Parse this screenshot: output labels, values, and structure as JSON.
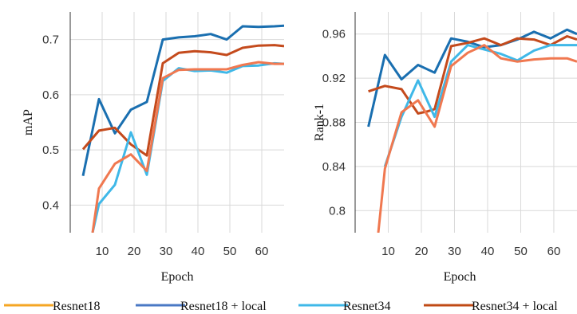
{
  "legend": {
    "entries": [
      {
        "label": "Resnet18",
        "color": "#f5a623"
      },
      {
        "label": "Resnet18 + local",
        "color": "#4a78c4"
      },
      {
        "label": "Resnet34",
        "color": "#3fb8e8"
      },
      {
        "label": "Resnet34 + local",
        "color": "#c04a14"
      }
    ]
  },
  "chart_data": [
    {
      "type": "line",
      "xlabel": "Epoch",
      "ylabel": "mAP",
      "xlim": [
        0,
        67
      ],
      "ylim": [
        0.35,
        0.75
      ],
      "xticks": [
        10,
        20,
        30,
        40,
        50,
        60
      ],
      "yticks": [
        0.4,
        0.5,
        0.6,
        0.7
      ],
      "ytick_labels": [
        "0.4",
        "0.5",
        "0.6",
        "0.7"
      ],
      "grid": true,
      "series": [
        {
          "name": "Resnet18 + local",
          "color": "#1a6fb0",
          "x": [
            4,
            9,
            14,
            19,
            24,
            29,
            34,
            39,
            44,
            49,
            54,
            59,
            64,
            67
          ],
          "y": [
            0.453,
            0.592,
            0.53,
            0.573,
            0.587,
            0.7,
            0.704,
            0.706,
            0.71,
            0.7,
            0.724,
            0.723,
            0.724,
            0.725
          ]
        },
        {
          "name": "Resnet34 + local",
          "color": "#c44a1c",
          "x": [
            4,
            9,
            14,
            19,
            24,
            29,
            34,
            39,
            44,
            49,
            54,
            59,
            64,
            67
          ],
          "y": [
            0.501,
            0.535,
            0.54,
            0.51,
            0.49,
            0.657,
            0.676,
            0.679,
            0.677,
            0.672,
            0.685,
            0.689,
            0.69,
            0.688
          ]
        },
        {
          "name": "Resnet34",
          "color": "#3fb8e8",
          "x": [
            7,
            9,
            14,
            19,
            24,
            29,
            34,
            39,
            44,
            49,
            54,
            59,
            64,
            67
          ],
          "y": [
            0.35,
            0.402,
            0.437,
            0.532,
            0.455,
            0.625,
            0.648,
            0.643,
            0.644,
            0.64,
            0.652,
            0.653,
            0.657,
            0.656
          ]
        },
        {
          "name": "Resnet18",
          "color": "#f07850",
          "x": [
            7,
            9,
            14,
            19,
            24,
            29,
            34,
            39,
            44,
            49,
            54,
            59,
            64,
            67
          ],
          "y": [
            0.35,
            0.43,
            0.475,
            0.492,
            0.462,
            0.63,
            0.645,
            0.646,
            0.646,
            0.646,
            0.654,
            0.659,
            0.656,
            0.656
          ]
        }
      ]
    },
    {
      "type": "line",
      "xlabel": "Epoch",
      "ylabel": "Rank-1",
      "xlim": [
        0,
        67
      ],
      "ylim": [
        0.78,
        0.98
      ],
      "xticks": [
        10,
        20,
        30,
        40,
        50,
        60
      ],
      "yticks": [
        0.8,
        0.84,
        0.88,
        0.92,
        0.96
      ],
      "ytick_labels": [
        "0.8",
        "0.84",
        "0.88",
        "0.92",
        "0.96"
      ],
      "grid": true,
      "series": [
        {
          "name": "Resnet18 + local",
          "color": "#1a6fb0",
          "x": [
            4,
            9,
            14,
            19,
            24,
            29,
            34,
            39,
            44,
            49,
            54,
            59,
            64,
            67
          ],
          "y": [
            0.876,
            0.941,
            0.919,
            0.932,
            0.925,
            0.956,
            0.953,
            0.948,
            0.95,
            0.955,
            0.962,
            0.956,
            0.964,
            0.96
          ]
        },
        {
          "name": "Resnet34 + local",
          "color": "#c44a1c",
          "x": [
            4,
            9,
            14,
            19,
            22,
            24,
            29,
            34,
            39,
            44,
            49,
            54,
            59,
            64,
            67
          ],
          "y": [
            0.908,
            0.913,
            0.91,
            0.888,
            0.89,
            0.892,
            0.949,
            0.952,
            0.956,
            0.95,
            0.956,
            0.955,
            0.95,
            0.958,
            0.955
          ]
        },
        {
          "name": "Resnet34",
          "color": "#3fb8e8",
          "x": [
            9,
            14,
            19,
            24,
            29,
            34,
            39,
            44,
            49,
            54,
            59,
            64,
            67
          ],
          "y": [
            0.84,
            0.885,
            0.918,
            0.885,
            0.935,
            0.95,
            0.946,
            0.942,
            0.936,
            0.945,
            0.95,
            0.95,
            0.95
          ]
        },
        {
          "name": "Resnet18",
          "color": "#f07850",
          "x": [
            7,
            9,
            14,
            19,
            24,
            29,
            34,
            39,
            44,
            49,
            54,
            59,
            64,
            67
          ],
          "y": [
            0.78,
            0.838,
            0.889,
            0.9,
            0.876,
            0.931,
            0.943,
            0.95,
            0.938,
            0.935,
            0.937,
            0.938,
            0.938,
            0.935
          ]
        }
      ]
    }
  ]
}
